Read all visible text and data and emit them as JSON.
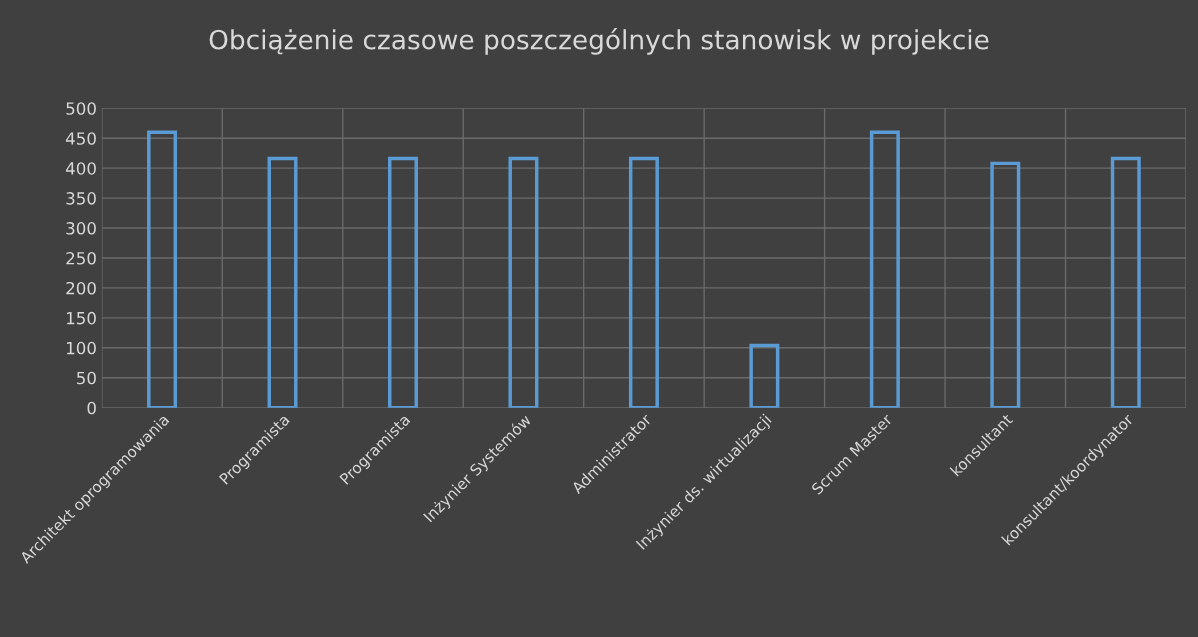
{
  "chart_data": {
    "type": "bar",
    "title": "Obciążenie czasowe poszczególnych stanowisk w projekcie",
    "categories": [
      "Architekt oprogramowania",
      "Programista",
      "Programista",
      "Inżynier Systemów",
      "Administrator",
      "Inżynier ds. wirtualizacji",
      "Scrum Master",
      "konsultant",
      "konsultant/koordynator"
    ],
    "values": [
      460,
      416,
      416,
      416,
      416,
      104,
      460,
      408,
      416
    ],
    "color": "#5b9bd5",
    "ylim": [
      0,
      500
    ],
    "yticks": [
      0,
      50,
      100,
      150,
      200,
      250,
      300,
      350,
      400,
      450,
      500
    ],
    "grid": true
  }
}
